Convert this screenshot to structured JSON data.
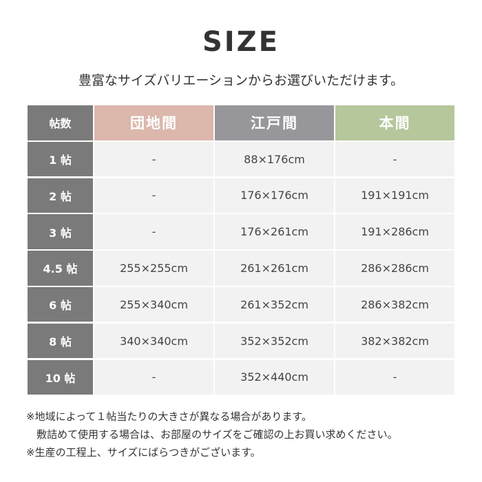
{
  "title": "SIZE",
  "subtitle": "豊富なサイズバリエーションからお選びいただけます。",
  "colors": {
    "row_header": "#7a7a7a",
    "danchima": "#dbb7ac",
    "edoma": "#97969b",
    "honma": "#b5c79b",
    "cell": "#f2f2f2"
  },
  "table": {
    "headers": [
      "帖数",
      "団地間",
      "江戸間",
      "本間"
    ],
    "rows": [
      [
        "1 帖",
        "-",
        "88×176cm",
        "-"
      ],
      [
        "2 帖",
        "-",
        "176×176cm",
        "191×191cm"
      ],
      [
        "3 帖",
        "-",
        "176×261cm",
        "191×286cm"
      ],
      [
        "4.5 帖",
        "255×255cm",
        "261×261cm",
        "286×286cm"
      ],
      [
        "6 帖",
        "255×340cm",
        "261×352cm",
        "286×382cm"
      ],
      [
        "8 帖",
        "340×340cm",
        "352×352cm",
        "382×382cm"
      ],
      [
        "10 帖",
        "-",
        "352×440cm",
        "-"
      ]
    ]
  },
  "notes": [
    "※地域によって１帖当たりの大きさが異なる場合があります。",
    "　敷詰めて使用する場合は、お部屋のサイズをご確認の上お買い求めください。",
    "※生産の工程上、サイズにばらつきがございます。"
  ]
}
